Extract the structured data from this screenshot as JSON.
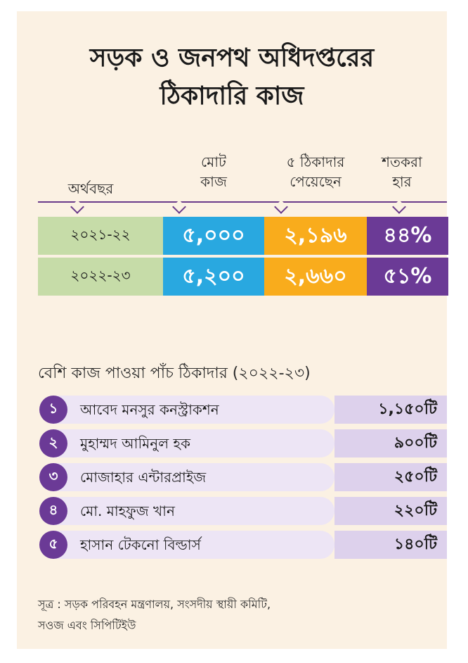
{
  "title": {
    "line1": "সড়ক ও জনপথ অধিদপ্তরের",
    "line2": "ঠিকাদারি কাজ"
  },
  "chart_data": [
    {
      "type": "table",
      "columns": [
        "অর্থবছর",
        "মোট কাজ",
        "৫ ঠিকাদার পেয়েছেন",
        "শতকরা হার"
      ],
      "rows": [
        {
          "year": "২০২১-২২",
          "total": "৫,০০০",
          "five": "২,১৯৬",
          "pct": "৪৪%"
        },
        {
          "year": "২০২২-২৩",
          "total": "৫,২০০",
          "five": "২,৬৬০",
          "pct": "৫১%"
        }
      ]
    },
    {
      "type": "table",
      "title": "বেশি কাজ পাওয়া পাঁচ ঠিকাদার (২০২২-২৩)",
      "rows": [
        {
          "rank": "১",
          "name": "আবেদ মনসুর কনস্ট্রাকশন",
          "count": "১,১৫০টি"
        },
        {
          "rank": "২",
          "name": "মুহাম্মদ আমিনুল হক",
          "count": "৯০০টি"
        },
        {
          "rank": "৩",
          "name": "মোজাহার এন্টারপ্রাইজ",
          "count": "২৫০টি"
        },
        {
          "rank": "৪",
          "name": "মো. মাহফুজ খান",
          "count": "২২০টি"
        },
        {
          "rank": "৫",
          "name": "হাসান টেকনো বিল্ডার্স",
          "count": "১৪০টি"
        }
      ]
    }
  ],
  "headers": {
    "year": "অর্থবছর",
    "total_l1": "মোট",
    "total_l2": "কাজ",
    "five_l1": "৫ ঠিকাদার",
    "five_l2": "পেয়েছেন",
    "pct_l1": "শতকরা",
    "pct_l2": "হার"
  },
  "source": {
    "line1": "সূত্র : সড়ক পরিবহন মন্ত্রণালয়, সংসদীয় স্থায়ী কমিটি,",
    "line2": "সওজ এবং সিপিটিইউ"
  },
  "colors": {
    "year_bg": "#c6dca8",
    "total_bg": "#29a8e0",
    "five_bg": "#f9ac1c",
    "pct_bg": "#6b3a96",
    "card_bg": "#fbf1e3"
  }
}
